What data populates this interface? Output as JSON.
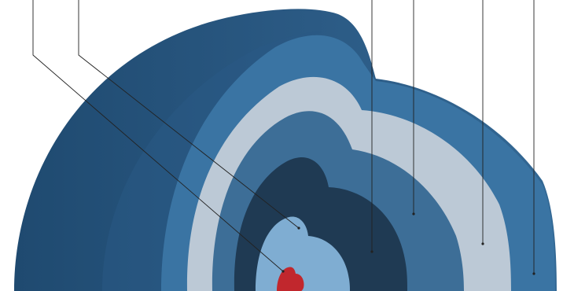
{
  "diagram": {
    "layers": [
      {
        "name": "outer-shell",
        "color": "#2f5f89"
      },
      {
        "name": "outer-band",
        "color": "#3a74a3"
      },
      {
        "name": "light-band",
        "color": "#bcc9d6"
      },
      {
        "name": "mid-band",
        "color": "#3d6e97"
      },
      {
        "name": "dark-band",
        "color": "#1f3a53"
      },
      {
        "name": "inner-band",
        "color": "#7fadd2"
      },
      {
        "name": "core",
        "color": "#c1272d"
      }
    ],
    "leader_line_color": "#222222",
    "leader_lines": [
      {
        "name": "leader-line-core"
      },
      {
        "name": "leader-line-inner-band"
      },
      {
        "name": "leader-line-dark-band"
      },
      {
        "name": "leader-line-mid-band"
      },
      {
        "name": "leader-line-light-band"
      },
      {
        "name": "leader-line-outer-band"
      }
    ]
  }
}
